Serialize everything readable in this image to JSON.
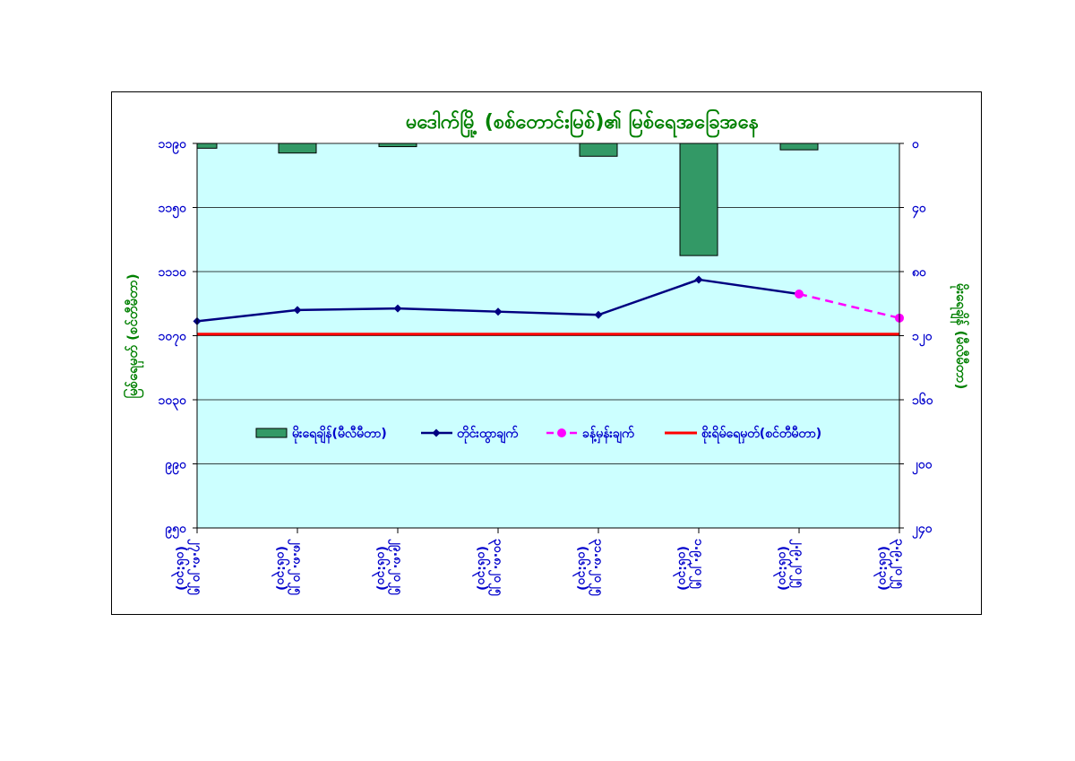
{
  "chart_data": {
    "type": "bar+line",
    "title": "မဒေါက်မြို့ (စစ်တောင်းမြစ်)၏ မြစ်ရေအခြေအနေ",
    "y_left_label": "မြစ်ရေမှတ် (စင်တီမီတာ)",
    "y_right_label": "မိုးရေချိန် (မီလီမီတာ)",
    "y_left_ticks": [
      "၁၁၉၀",
      "၁၁၅၀",
      "၁၁၁၀",
      "၁၀၇၀",
      "၁၀၃၀",
      "၉၉၀",
      "၉၅၀"
    ],
    "y_left_range": [
      950,
      1190
    ],
    "y_right_ticks": [
      "၀",
      "၄၀",
      "၈၀",
      "၁၂၀",
      "၁၆၀",
      "၂၀၀",
      "၂၄၀"
    ],
    "y_right_range": [
      0,
      240
    ],
    "right_axis_inverted": true,
    "x_categories": [
      [
        "၂၇.၈.၂၀၂၅",
        "(၀၆:၃၀)"
      ],
      [
        "၂၈.၈.၂၀၂၅",
        "(၀၆:၃၀)"
      ],
      [
        "၂၉.၈.၂၀၂၅",
        "(၀၆:၃၀)"
      ],
      [
        "၃၀.၈.၂၀၂၅",
        "(၀၆:၃၀)"
      ],
      [
        "၃၁.၈.၂၀၂၅",
        "(၀၆:၃၀)"
      ],
      [
        "၁.၉.၂၀၂၅",
        "(၀၆:၃၀)"
      ],
      [
        "၂.၉.၂၀၂၅",
        "(၀၆:၃၀)"
      ],
      [
        "၃.၉.၂၀၂၅",
        "(၀၆:၃၀)"
      ]
    ],
    "series": [
      {
        "name": "မိုးရေချိန်(မီလီမီတာ)",
        "type": "bar",
        "axis": "right",
        "values": [
          3,
          6,
          2,
          null,
          8,
          70,
          4,
          null
        ]
      },
      {
        "name": "တိုင်းထွာချက်",
        "type": "line",
        "axis": "left",
        "values": [
          1079,
          1086,
          1087,
          1085,
          1083,
          1105,
          null,
          null
        ]
      },
      {
        "name": "ခန့်မှန်းချက်",
        "type": "line-dashed",
        "axis": "left",
        "values": [
          null,
          null,
          null,
          null,
          null,
          null,
          1096,
          1081
        ]
      },
      {
        "name": "စိုးရိမ်ရေမှတ်(စင်တီမီတာ)",
        "type": "hline",
        "axis": "left",
        "value": 1071
      }
    ],
    "bridge_point": {
      "from_index": 5,
      "from_value": 1105
    },
    "legend_placement": "inside-bottom",
    "grid": true
  },
  "colors": {
    "plot_bg": "#ccffff",
    "bar_fill": "#339966",
    "observed_line": "#000080",
    "forecast_line": "#ff00ff",
    "danger_line": "#ff0000",
    "title": "#008000",
    "axis_text": "#0000cc"
  }
}
